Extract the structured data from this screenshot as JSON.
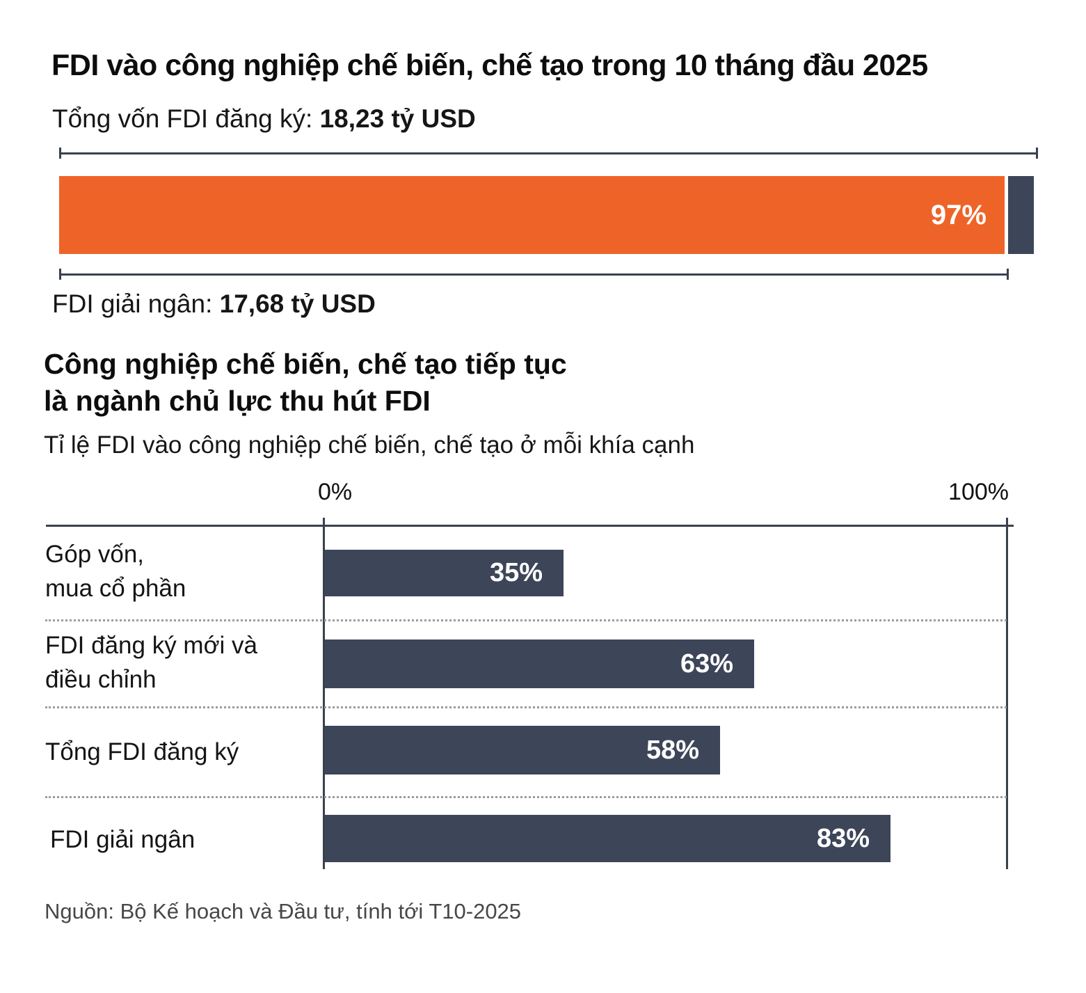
{
  "header": {
    "title": "FDI vào công nghiệp chế biến, chế tạo trong 10 tháng đầu 2025",
    "registered_prefix": "Tổng vốn FDI đăng ký: ",
    "registered_value": "18,23 tỷ USD",
    "disbursed_prefix": "FDI giải ngân: ",
    "disbursed_value": "17,68 tỷ USD",
    "percent_label": "97%"
  },
  "section": {
    "heading_line1": "Công nghiệp chế biến, chế tạo tiếp tục",
    "heading_line2": "là ngành chủ lực thu hút FDI",
    "subtitle": "Tỉ lệ FDI vào công nghiệp chế biến, chế tạo ở mỗi khía cạnh"
  },
  "colors": {
    "orange": "#ee6428",
    "navy": "#3d4559",
    "axis": "#39414e",
    "separator": "#9b9b9b"
  },
  "chart_data": [
    {
      "type": "bar",
      "subtype": "progress",
      "title": "FDI vào công nghiệp chế biến, chế tạo trong 10 tháng đầu 2025",
      "total_label": "Tổng vốn FDI đăng ký: 18,23 tỷ USD",
      "total_value_ty_usd": 18.23,
      "disbursed_label": "FDI giải ngân: 17,68 tỷ USD",
      "disbursed_value_ty_usd": 17.68,
      "percent_disbursed": 97,
      "percent_label": "97%",
      "fill_color": "#ee6428",
      "remainder_color": "#3d4559"
    },
    {
      "type": "bar",
      "orientation": "horizontal",
      "title": "Công nghiệp chế biến, chế tạo tiếp tục là ngành chủ lực thu hút FDI",
      "subtitle": "Tỉ lệ FDI vào công nghiệp chế biến, chế tạo ở mỗi khía cạnh",
      "categories": [
        "Góp vốn, mua cổ phần",
        "FDI đăng ký mới và điều chỉnh",
        "Tổng FDI đăng ký",
        "FDI giải ngân"
      ],
      "label_lines": [
        [
          "Góp vốn,",
          "mua cổ phần"
        ],
        [
          "FDI đăng ký mới và",
          "điều chỉnh"
        ],
        [
          "Tổng FDI đăng ký"
        ],
        [
          "FDI giải ngân"
        ]
      ],
      "values": [
        35,
        63,
        58,
        83
      ],
      "value_labels": [
        "35%",
        "63%",
        "58%",
        "83%"
      ],
      "xlim": [
        0,
        100
      ],
      "axis_tick_labels": [
        "0%",
        "100%"
      ],
      "bar_color": "#3d4559",
      "grid": "dotted-row-separators",
      "legend": "none"
    }
  ],
  "footer": {
    "source": "Nguồn: Bộ Kế hoạch và Đầu tư, tính tới T10-2025"
  }
}
